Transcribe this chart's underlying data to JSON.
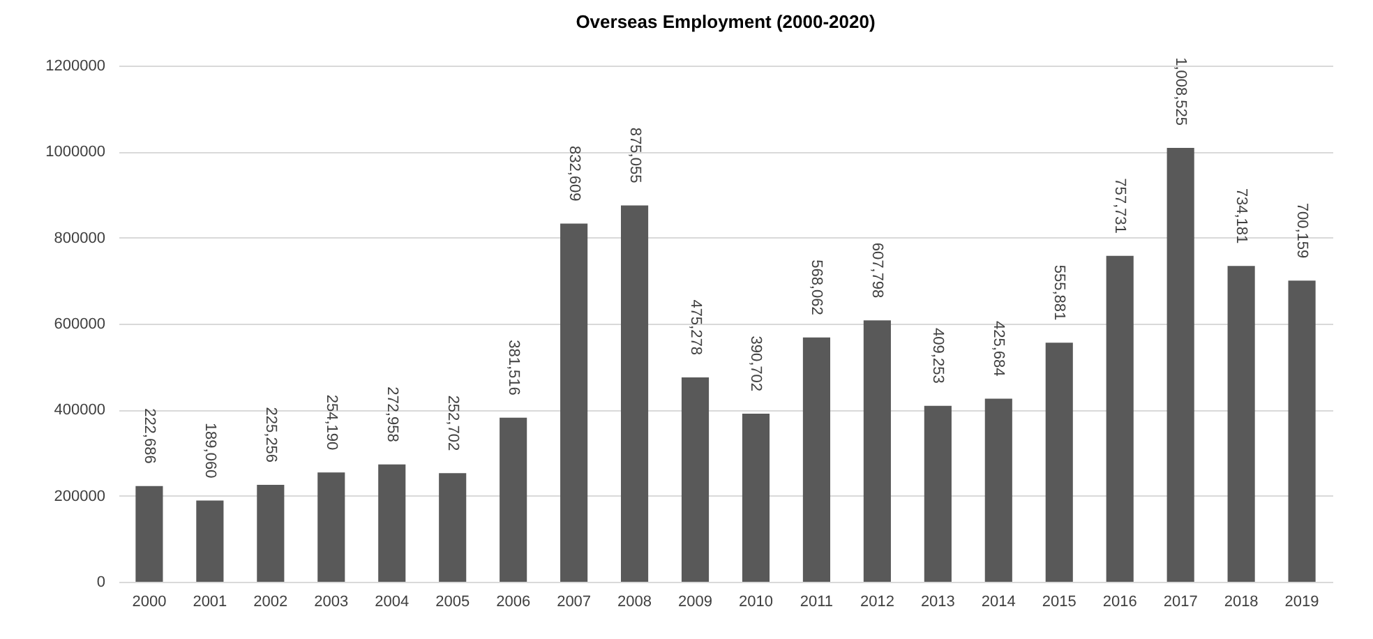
{
  "chart_data": {
    "type": "bar",
    "title": "Overseas Employment (2000-2020)",
    "categories": [
      "2000",
      "2001",
      "2002",
      "2003",
      "2004",
      "2005",
      "2006",
      "2007",
      "2008",
      "2009",
      "2010",
      "2011",
      "2012",
      "2013",
      "2014",
      "2015",
      "2016",
      "2017",
      "2018",
      "2019"
    ],
    "values": [
      222686,
      189060,
      225256,
      254190,
      272958,
      252702,
      381516,
      832609,
      875055,
      475278,
      390702,
      568062,
      607798,
      409253,
      425684,
      555881,
      757731,
      1008525,
      734181,
      700159
    ],
    "value_labels": [
      "222,686",
      "189,060",
      "225,256",
      "254,190",
      "272,958",
      "252,702",
      "381,516",
      "832,609",
      "875,055",
      "475,278",
      "390,702",
      "568,062",
      "607,798",
      "409,253",
      "425,684",
      "555,881",
      "757,731",
      "1,008,525",
      "734,181",
      "700,159"
    ],
    "color": "#595959",
    "ylim": [
      0,
      1200000
    ],
    "yticks": [
      0,
      200000,
      400000,
      600000,
      800000,
      1000000,
      1200000
    ],
    "grid": "y"
  }
}
